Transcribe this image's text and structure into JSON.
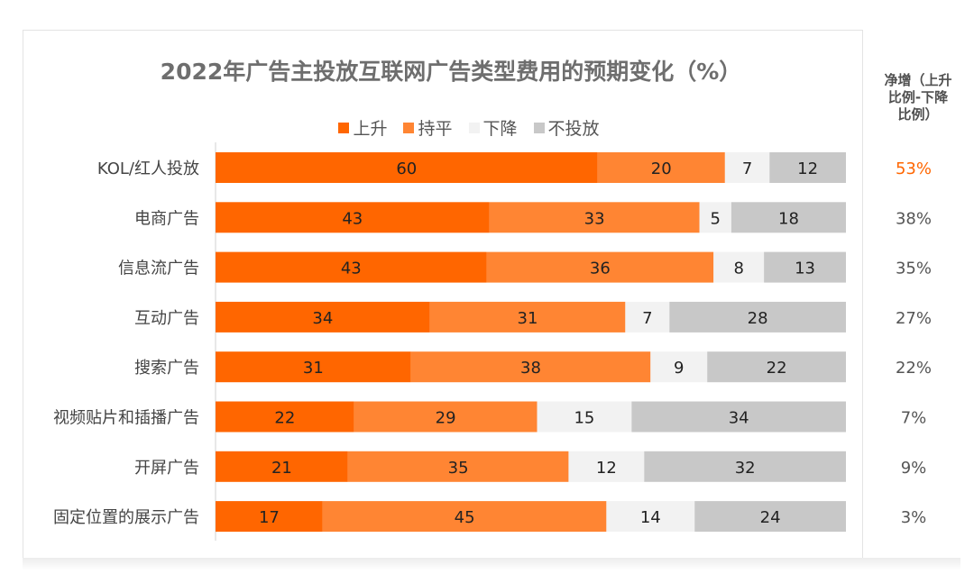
{
  "chart_data": {
    "type": "bar",
    "orientation": "horizontal",
    "stacked": true,
    "title": "2022年广告主投放互联网广告类型费用的预期变化（%）",
    "categories": [
      "KOL/红人投放",
      "电商广告",
      "信息流广告",
      "互动广告",
      "搜索广告",
      "视频贴片和插播广告",
      "开屏广告",
      "固定位置的展示广告"
    ],
    "series": [
      {
        "name": "上升",
        "color": "#ff6600",
        "values": [
          60,
          43,
          43,
          34,
          31,
          22,
          21,
          17
        ]
      },
      {
        "name": "持平",
        "color": "#ff8533",
        "values": [
          20,
          33,
          36,
          31,
          38,
          29,
          35,
          45
        ]
      },
      {
        "name": "下降",
        "color": "#f2f2f2",
        "values": [
          7,
          5,
          8,
          7,
          9,
          15,
          12,
          14
        ]
      },
      {
        "name": "不投放",
        "color": "#c8c8c8",
        "values": [
          12,
          18,
          13,
          28,
          22,
          34,
          32,
          24
        ]
      }
    ],
    "net_increase_header": [
      "净增（上升",
      "比例-下降",
      "比例）"
    ],
    "net_increase": [
      "53%",
      "38%",
      "35%",
      "27%",
      "22%",
      "7%",
      "9%",
      "3%"
    ],
    "highlight_color": "#ff6600",
    "legend_position": "top",
    "grid": false
  }
}
